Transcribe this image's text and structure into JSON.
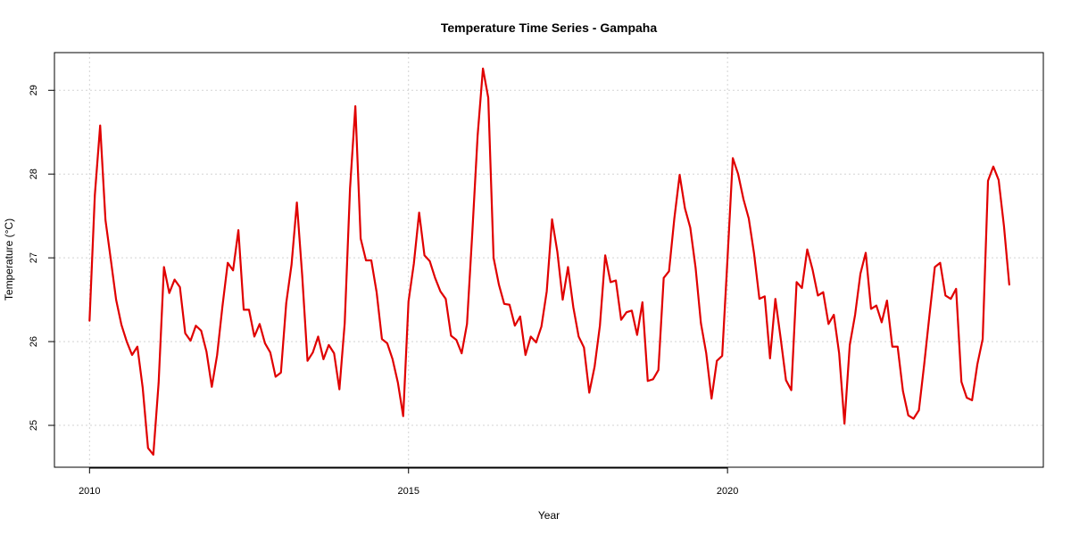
{
  "chart_data": {
    "type": "line",
    "title": "Temperature Time Series - Gampaha",
    "xlabel": "Year",
    "ylabel": "Temperature (°C)",
    "xlim": [
      2009.45,
      2024.95
    ],
    "ylim": [
      24.5,
      29.45
    ],
    "x_ticks": [
      2010,
      2015,
      2020
    ],
    "x_tick_labels": [
      "2010",
      "2015",
      "2020"
    ],
    "y_ticks": [
      25,
      26,
      27,
      28,
      29
    ],
    "y_tick_labels": [
      "25",
      "26",
      "27",
      "28",
      "29"
    ],
    "grid": true,
    "line_color": "#e00000",
    "series": [
      {
        "start_year": 2010,
        "step_years": 0.08333,
        "values": [
          26.25,
          27.75,
          28.58,
          27.45,
          26.98,
          26.5,
          26.2,
          26.0,
          25.84,
          25.94,
          25.45,
          24.73,
          24.65,
          25.51,
          26.89,
          26.58,
          26.74,
          26.65,
          26.1,
          26.01,
          26.19,
          26.13,
          25.88,
          25.46,
          25.84,
          26.42,
          26.94,
          26.85,
          27.33,
          26.38,
          26.38,
          26.06,
          26.21,
          25.98,
          25.87,
          25.58,
          25.63,
          26.46,
          26.92,
          27.66,
          26.79,
          25.77,
          25.87,
          26.06,
          25.79,
          25.96,
          25.86,
          25.43,
          26.22,
          27.83,
          28.81,
          27.23,
          26.97,
          26.97,
          26.59,
          26.03,
          25.98,
          25.79,
          25.51,
          25.11,
          26.48,
          26.93,
          27.54,
          27.03,
          26.96,
          26.76,
          26.6,
          26.51,
          26.07,
          26.02,
          25.86,
          26.21,
          27.3,
          28.46,
          29.26,
          28.91,
          27.0,
          26.68,
          26.45,
          26.44,
          26.19,
          26.3,
          25.84,
          26.06,
          25.99,
          26.18,
          26.6,
          27.46,
          27.07,
          26.5,
          26.89,
          26.41,
          26.06,
          25.93,
          25.39,
          25.7,
          26.19,
          27.03,
          26.71,
          26.73,
          26.26,
          26.35,
          26.37,
          26.08,
          26.47,
          25.53,
          25.55,
          25.66,
          26.76,
          26.84,
          27.47,
          27.99,
          27.59,
          27.36,
          26.88,
          26.22,
          25.86,
          25.32,
          25.77,
          25.83,
          26.99,
          28.19,
          28.0,
          27.7,
          27.47,
          27.05,
          26.51,
          26.54,
          25.8,
          26.51,
          26.04,
          25.54,
          25.42,
          26.71,
          26.64,
          27.1,
          26.86,
          26.55,
          26.59,
          26.21,
          26.32,
          25.86,
          25.02,
          25.96,
          26.32,
          26.81,
          27.06,
          26.39,
          26.43,
          26.23,
          26.49,
          25.94,
          25.94,
          25.41,
          25.12,
          25.08,
          25.18,
          25.73,
          26.32,
          26.89,
          26.94,
          26.55,
          26.51,
          26.63,
          25.52,
          25.33,
          25.3,
          25.73,
          26.03,
          27.92,
          28.09,
          27.93,
          27.38,
          26.68
        ]
      }
    ]
  }
}
